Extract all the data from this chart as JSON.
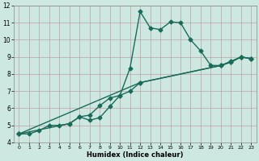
{
  "title": "",
  "xlabel": "Humidex (Indice chaleur)",
  "ylabel": "",
  "bg_color": "#cce8e0",
  "grid_color": "#c0a0a8",
  "line_color": "#1a6b5a",
  "xlim": [
    -0.5,
    23.5
  ],
  "ylim": [
    4,
    12
  ],
  "xticks": [
    0,
    1,
    2,
    3,
    4,
    5,
    6,
    7,
    8,
    9,
    10,
    11,
    12,
    13,
    14,
    15,
    16,
    17,
    18,
    19,
    20,
    21,
    22,
    23
  ],
  "yticks": [
    4,
    5,
    6,
    7,
    8,
    9,
    10,
    11,
    12
  ],
  "line1_x": [
    0,
    1,
    2,
    3,
    4,
    5,
    6,
    7,
    8,
    9,
    10,
    11,
    12,
    13,
    14,
    15,
    16,
    17,
    18,
    19,
    20,
    21,
    22,
    23
  ],
  "line1_y": [
    4.5,
    4.5,
    4.7,
    5.0,
    5.0,
    5.1,
    5.5,
    5.3,
    5.45,
    6.1,
    6.75,
    8.35,
    11.65,
    10.7,
    10.6,
    11.05,
    11.0,
    10.0,
    9.35,
    8.5,
    8.5,
    8.75,
    9.0,
    8.9
  ],
  "line2_x": [
    0,
    5,
    6,
    7,
    8,
    9,
    10,
    11,
    12,
    20,
    21,
    22,
    23
  ],
  "line2_y": [
    4.5,
    5.1,
    5.5,
    5.6,
    6.15,
    6.6,
    6.75,
    7.0,
    7.5,
    8.5,
    8.7,
    9.0,
    8.9
  ],
  "line3_x": [
    0,
    12,
    20,
    21,
    22,
    23
  ],
  "line3_y": [
    4.5,
    7.5,
    8.5,
    8.7,
    9.0,
    8.9
  ],
  "marker_size": 2.5,
  "linewidth": 1.0
}
